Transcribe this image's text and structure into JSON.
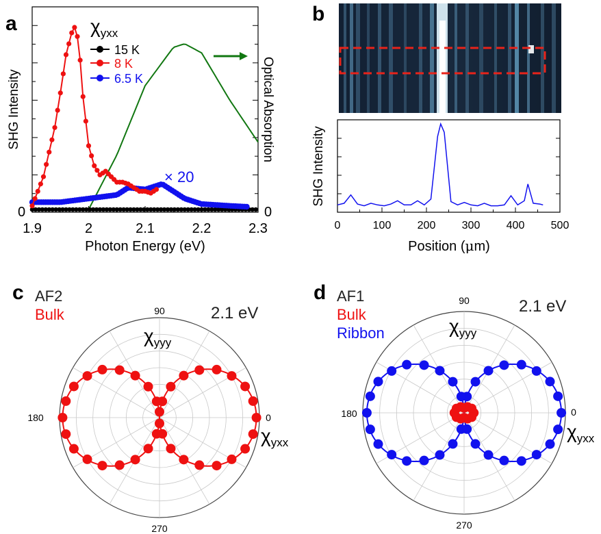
{
  "colors": {
    "black": "#000000",
    "red": "#ee1111",
    "blue": "#1111ee",
    "green": "#117711",
    "grid": "#c8c8c8"
  },
  "panel_a": {
    "letter": "a",
    "chi_base": "χ",
    "chi_sub": "yxx",
    "ylabel_left": "SHG Intensity",
    "ylabel_right": "Optical Absorption",
    "xlabel": "Photon Energy (eV)",
    "zero_left": "0",
    "zero_right": "0",
    "xticks": [
      "1.9",
      "2",
      "2.1",
      "2.2",
      "2.3"
    ],
    "scale_note": "× 20",
    "legend": [
      "15 K",
      "8 K",
      "6.5 K"
    ]
  },
  "panel_b": {
    "letter": "b",
    "ylabel": "SHG Intensity",
    "xlabel_pre": "Position (",
    "xlabel_unit": "μ",
    "xlabel_post": "m)",
    "xticks": [
      "0",
      "100",
      "200",
      "300",
      "400",
      "500"
    ]
  },
  "panel_c": {
    "letter": "c",
    "label1": "AF2",
    "label2": "Bulk",
    "energy": "2.1 eV",
    "top_chi_base": "χ",
    "top_chi_sub": "yyy",
    "right_chi_base": "χ",
    "right_chi_sub": "yxx",
    "angle_labels": [
      "90",
      "180",
      "0",
      "270"
    ]
  },
  "panel_d": {
    "letter": "d",
    "label1": "AF1",
    "label2": "Bulk",
    "label3": "Ribbon",
    "energy": "2.1 eV",
    "top_chi_base": "χ",
    "top_chi_sub": "yyy",
    "right_chi_base": "χ",
    "right_chi_sub": "yxx",
    "angle_labels": [
      "90",
      "180",
      "0",
      "270"
    ]
  },
  "chart_data": [
    {
      "type": "line",
      "panel": "a",
      "xlabel": "Photon Energy (eV)",
      "ylabel": "SHG Intensity",
      "y2label": "Optical Absorption",
      "xlim": [
        1.9,
        2.3
      ],
      "ylim": [
        0,
        1.0
      ],
      "series": [
        {
          "name": "15 K",
          "x": [
            1.9,
            1.95,
            2.0,
            2.05,
            2.1,
            2.15,
            2.2,
            2.25,
            2.3
          ],
          "y": [
            0,
            0,
            0,
            0,
            0,
            0,
            0,
            0,
            0
          ]
        },
        {
          "name": "8 K",
          "x": [
            1.9,
            1.92,
            1.94,
            1.95,
            1.96,
            1.97,
            1.975,
            1.98,
            1.985,
            1.99,
            2.0,
            2.01,
            2.02,
            2.03,
            2.04,
            2.05,
            2.06,
            2.07,
            2.08,
            2.09,
            2.1,
            2.11,
            2.12
          ],
          "y": [
            0.02,
            0.18,
            0.45,
            0.64,
            0.85,
            0.97,
            1.0,
            0.95,
            0.82,
            0.62,
            0.35,
            0.24,
            0.19,
            0.21,
            0.18,
            0.15,
            0.15,
            0.14,
            0.12,
            0.1,
            0.1,
            0.09,
            0.11
          ]
        },
        {
          "name": "6.5 K",
          "x": [
            1.9,
            1.95,
            2.0,
            2.05,
            2.07,
            2.1,
            2.13,
            2.15,
            2.17,
            2.2,
            2.25,
            2.28
          ],
          "y": [
            0.04,
            0.04,
            0.06,
            0.08,
            0.12,
            0.11,
            0.14,
            0.1,
            0.06,
            0.03,
            0.02,
            0.015
          ]
        },
        {
          "name": "Optical Absorption",
          "x": [
            2.0,
            2.05,
            2.1,
            2.15,
            2.17,
            2.2,
            2.25,
            2.3
          ],
          "y": [
            0.0,
            0.3,
            0.68,
            0.89,
            0.91,
            0.86,
            0.6,
            0.37
          ]
        }
      ],
      "annotations": [
        "× 20"
      ]
    },
    {
      "type": "line",
      "panel": "b",
      "xlabel": "Position (μm)",
      "ylabel": "SHG Intensity",
      "xlim": [
        0,
        500
      ],
      "ylim": [
        0,
        1.0
      ],
      "series": [
        {
          "name": "",
          "x": [
            0,
            15,
            30,
            45,
            60,
            75,
            90,
            105,
            120,
            135,
            150,
            165,
            180,
            195,
            210,
            225,
            232,
            240,
            255,
            270,
            285,
            300,
            315,
            330,
            345,
            360,
            375,
            390,
            405,
            420,
            428,
            440,
            455,
            462
          ],
          "y": [
            0.03,
            0.05,
            0.15,
            0.04,
            0.02,
            0.05,
            0.03,
            0.02,
            0.04,
            0.08,
            0.03,
            0.03,
            0.08,
            0.03,
            0.1,
            0.85,
            1.0,
            0.9,
            0.07,
            0.03,
            0.06,
            0.03,
            0.02,
            0.05,
            0.02,
            0.02,
            0.03,
            0.14,
            0.03,
            0.08,
            0.28,
            0.05,
            0.04,
            0.03
          ]
        }
      ]
    },
    {
      "type": "scatter",
      "panel": "c",
      "coordinates": "polar",
      "series": [
        {
          "name": "Bulk",
          "angles_deg": [
            0,
            10,
            20,
            30,
            40,
            50,
            60,
            70,
            80,
            90,
            100,
            110,
            120,
            130,
            140,
            150,
            160,
            170,
            180,
            190,
            200,
            210,
            220,
            230,
            240,
            250,
            260,
            270,
            280,
            290,
            300,
            310,
            320,
            330,
            340,
            350
          ],
          "r": [
            1.0,
            0.98,
            0.94,
            0.86,
            0.77,
            0.64,
            0.5,
            0.34,
            0.17,
            0.06,
            0.17,
            0.34,
            0.5,
            0.64,
            0.77,
            0.86,
            0.94,
            0.98,
            1.0,
            0.98,
            0.94,
            0.86,
            0.77,
            0.64,
            0.5,
            0.34,
            0.17,
            0.06,
            0.17,
            0.34,
            0.5,
            0.64,
            0.77,
            0.86,
            0.94,
            0.98
          ]
        }
      ]
    },
    {
      "type": "scatter",
      "panel": "d",
      "coordinates": "polar",
      "series": [
        {
          "name": "Ribbon",
          "angles_deg": [
            0,
            10,
            20,
            30,
            40,
            50,
            60,
            70,
            80,
            100,
            110,
            120,
            130,
            140,
            150,
            160,
            170,
            180,
            190,
            200,
            210,
            220,
            230,
            240,
            250,
            260,
            280,
            290,
            300,
            310,
            320,
            330,
            340,
            350
          ],
          "r": [
            1.0,
            0.98,
            0.94,
            0.86,
            0.77,
            0.64,
            0.5,
            0.34,
            0.17,
            0.17,
            0.34,
            0.5,
            0.64,
            0.77,
            0.86,
            0.94,
            0.98,
            1.0,
            0.98,
            0.94,
            0.86,
            0.77,
            0.64,
            0.5,
            0.34,
            0.17,
            0.17,
            0.34,
            0.5,
            0.64,
            0.77,
            0.86,
            0.94,
            0.98
          ]
        },
        {
          "name": "Bulk",
          "angles_deg": [
            0,
            30,
            60,
            90,
            120,
            150,
            180,
            210,
            240,
            270,
            300,
            330
          ],
          "r": [
            0.1,
            0.09,
            0.07,
            0.05,
            0.07,
            0.09,
            0.1,
            0.09,
            0.07,
            0.05,
            0.07,
            0.09
          ]
        }
      ]
    }
  ]
}
